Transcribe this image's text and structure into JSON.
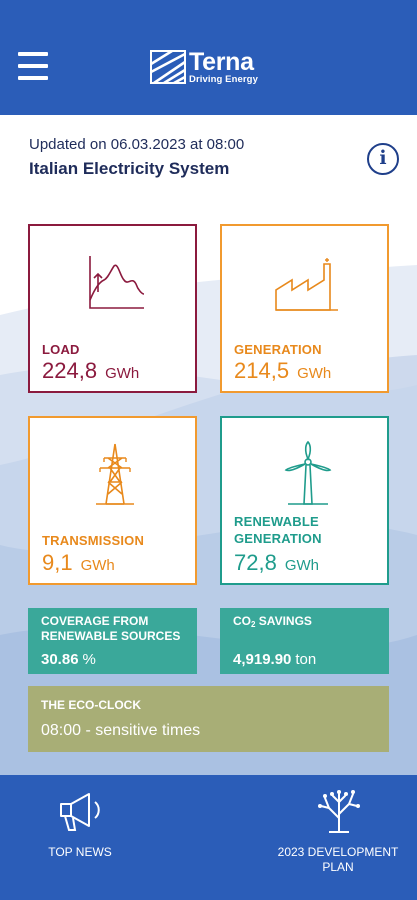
{
  "header": {
    "brand_name": "Terna",
    "brand_tagline": "Driving Energy",
    "menu_icon": "hamburger-menu-icon",
    "color": "#2b5db8"
  },
  "status": {
    "updated": "Updated on 06.03.2023 at 08:00",
    "title": "Italian Electricity System",
    "info_icon": "info-icon"
  },
  "tiles": {
    "load": {
      "label": "LOAD",
      "value": "224,8",
      "unit": "GWh",
      "icon": "load-curve-icon",
      "color": "#8b1a3e"
    },
    "generation": {
      "label": "GENERATION",
      "value": "214,5",
      "unit": "GWh",
      "icon": "factory-icon",
      "color": "#e8891c"
    },
    "transmission": {
      "label": "TRANSMISSION",
      "value": "9,1",
      "unit": "GWh",
      "icon": "pylon-icon",
      "color": "#e8891c"
    },
    "renewable": {
      "label_line1": "RENEWABLE",
      "label_line2": "GENERATION",
      "value": "72,8",
      "unit": "GWh",
      "icon": "wind-turbine-icon",
      "color": "#1f9c8c"
    }
  },
  "coverage": {
    "label_line1": "COVERAGE FROM",
    "label_line2": "RENEWABLE SOURCES",
    "value": "30.86",
    "unit": "%",
    "color": "#3aa89a"
  },
  "co2": {
    "label_prefix": "CO",
    "label_sub": "2",
    "label_suffix": " SAVINGS",
    "value": "4,919.90",
    "unit": "ton"
  },
  "eco_clock": {
    "label": "THE ECO-CLOCK",
    "value": "08:00 - sensitive times",
    "color": "#a8ae76"
  },
  "bottom_nav": {
    "news": {
      "label": "TOP NEWS",
      "icon": "megaphone-icon"
    },
    "plan": {
      "label_line1": "2023 DEVELOPMENT",
      "label_line2": "PLAN",
      "icon": "tree-network-icon"
    }
  }
}
